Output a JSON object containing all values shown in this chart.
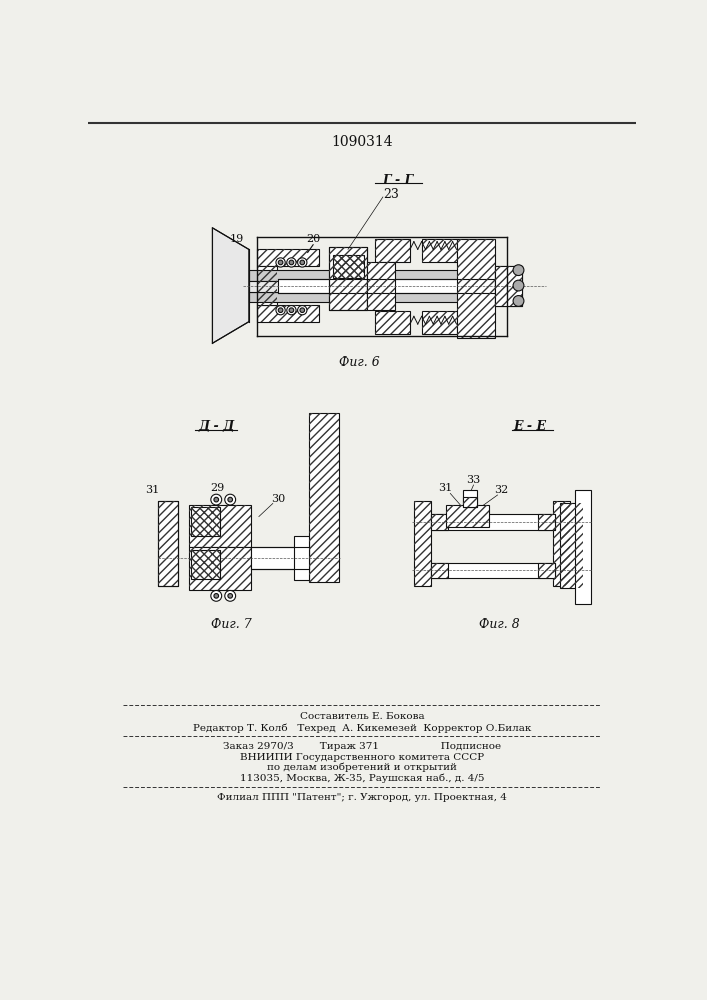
{
  "patent_number": "1090314",
  "fig6_label": "Фиг. 6",
  "fig7_label": "Фиг. 7",
  "fig8_label": "Фиг. 8",
  "section_gg": "Г - Г",
  "section_aa": "Д - Д",
  "section_ee": "Е - Е",
  "footer_line1": "Составитель Е. Бокова",
  "footer_line2": "Редактор Т. Колб   Техред  А. Кикемезей  Корректор О.Билак",
  "footer_line3": "Заказ 2970/3        Тираж 371                   Подписное",
  "footer_line4": "ВНИИПИ Государственного комитета СССР",
  "footer_line5": "по делам изобретений и открытий",
  "footer_line6": "113035, Москва, Ж-35, Раушская наб., д. 4/5",
  "footer_line7": "Филиал ППП \"Патент\"; г. Ужгород, ул. Проектная, 4",
  "bg_color": "#f0f0eb",
  "line_color": "#111111"
}
